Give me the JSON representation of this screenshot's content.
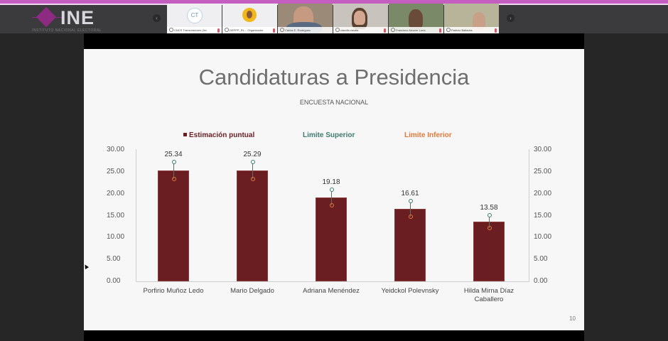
{
  "header": {
    "logo_text": "INE",
    "logo_subtitle": "INSTITUTO NACIONAL ELECTORAL",
    "nav_prev_icon": "‹",
    "nav_next_icon": "›"
  },
  "participants": [
    {
      "name": "CNCS Transmisiones (Inv",
      "avatar": "CT",
      "type": "initials"
    },
    {
      "name": "DEPPP_RL... Organizador",
      "type": "photo"
    },
    {
      "name": "Carlos E. Rodríguez",
      "type": "video"
    },
    {
      "name": "claudia zavala",
      "type": "video"
    },
    {
      "name": "Francisco Alcocer Luna",
      "type": "video"
    },
    {
      "name": "Patricio Ballados",
      "type": "video"
    }
  ],
  "slide": {
    "title": "Candidaturas a Presidencia",
    "subtitle": "ENCUESTA NACIONAL",
    "page_number": "10"
  },
  "chart_data": {
    "type": "bar",
    "title": "Candidaturas a Presidencia",
    "subtitle": "ENCUESTA NACIONAL",
    "categories": [
      "Porfirio Muñoz Ledo",
      "Mario Delgado",
      "Adriana Menéndez",
      "Yeidckol Polevnsky",
      "Hilda Mirna Díaz Caballero"
    ],
    "category_lines": [
      [
        "Porfirio Muñoz Ledo"
      ],
      [
        "Mario Delgado"
      ],
      [
        "Adriana Menéndez"
      ],
      [
        "Yeidckol Polevnsky"
      ],
      [
        "Hilda Mirna Díaz",
        "Caballero"
      ]
    ],
    "series": [
      {
        "name": "Estimación puntual",
        "color": "#6b1e22",
        "values": [
          25.34,
          25.29,
          19.18,
          16.61,
          13.58
        ]
      },
      {
        "name": "Limite Superior",
        "color": "#3e7a6e",
        "values": [
          27.3,
          27.2,
          21.0,
          18.4,
          15.1
        ]
      },
      {
        "name": "Limite Inferior",
        "color": "#e07a3a",
        "values": [
          23.4,
          23.4,
          17.4,
          14.8,
          12.1
        ]
      }
    ],
    "value_labels": [
      "25.34",
      "25.29",
      "19.18",
      "16.61",
      "13.58"
    ],
    "y_ticks": [
      "0.00",
      "5.00",
      "10.00",
      "15.00",
      "20.00",
      "25.00",
      "30.00"
    ],
    "ylim": [
      0,
      30
    ],
    "xlabel": "",
    "ylabel": "",
    "legend_position": "top",
    "grid": false,
    "secondary_y_axis": true
  },
  "legend": {
    "estimate": "Estimación puntual",
    "upper": "Limite Superior",
    "lower": "Limite Inferior",
    "estimate_color": "#6b1e22",
    "upper_color": "#3e7a6e",
    "lower_color": "#e07a3a"
  }
}
